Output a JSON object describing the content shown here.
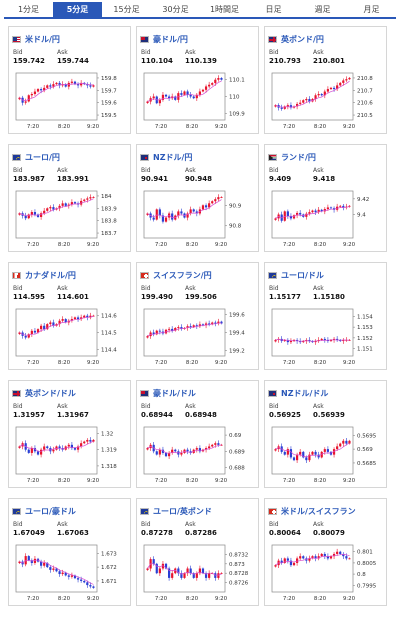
{
  "tabs": [
    "1分足",
    "5分足",
    "15分足",
    "30分足",
    "1時間足",
    "日足",
    "週足",
    "月足"
  ],
  "active_tab": 1,
  "labels": {
    "bid": "Bid",
    "ask": "Ask"
  },
  "x_ticks": [
    "7:20",
    "8:20",
    "9:20"
  ],
  "colors": {
    "accent": "#2a58b8",
    "up": "#e8142d",
    "down": "#2a3fd4",
    "ma": "#d64ad0"
  },
  "panels": [
    {
      "name": "米ドル/円",
      "flag": "us",
      "bid": "159.742",
      "ask": "159.744",
      "y_ticks": [
        "159.8",
        "159.7",
        "159.6",
        "159.5"
      ],
      "ylim": [
        159.46,
        159.84
      ],
      "chart_data": {
        "type": "candlestick",
        "close": [
          159.64,
          159.6,
          159.61,
          159.66,
          159.67,
          159.69,
          159.71,
          159.7,
          159.72,
          159.74,
          159.73,
          159.75,
          159.76,
          159.74,
          159.75,
          159.73,
          159.76,
          159.77,
          159.75,
          159.74,
          159.76,
          159.75,
          159.74,
          159.73,
          159.74
        ]
      }
    },
    {
      "name": "豪ドル/円",
      "flag": "au",
      "bid": "110.104",
      "ask": "110.139",
      "y_ticks": [
        "110.1",
        "110",
        "109.9"
      ],
      "ylim": [
        109.86,
        110.14
      ],
      "chart_data": {
        "type": "candlestick",
        "close": [
          109.97,
          109.99,
          110.0,
          109.96,
          109.98,
          110.01,
          110.0,
          109.99,
          110.0,
          109.98,
          110.02,
          110.01,
          110.03,
          110.01,
          110.0,
          109.99,
          110.01,
          110.03,
          110.04,
          110.06,
          110.07,
          110.08,
          110.1,
          110.11,
          110.1
        ]
      }
    },
    {
      "name": "英ポンド/円",
      "flag": "gb",
      "bid": "210.793",
      "ask": "210.801",
      "y_ticks": [
        "210.8",
        "210.7",
        "210.6",
        "210.5"
      ],
      "ylim": [
        210.46,
        210.84
      ],
      "chart_data": {
        "type": "candlestick",
        "close": [
          210.58,
          210.56,
          210.55,
          210.57,
          210.58,
          210.56,
          210.57,
          210.59,
          210.6,
          210.62,
          210.63,
          210.61,
          210.63,
          210.66,
          210.67,
          210.66,
          210.69,
          210.71,
          210.72,
          210.71,
          210.74,
          210.76,
          210.78,
          210.79,
          210.8
        ]
      }
    },
    {
      "name": "ユーロ/円",
      "flag": "eu",
      "bid": "183.987",
      "ask": "183.991",
      "y_ticks": [
        "184",
        "183.9",
        "183.8",
        "183.7"
      ],
      "ylim": [
        183.66,
        184.04
      ],
      "chart_data": {
        "type": "candlestick",
        "close": [
          183.86,
          183.84,
          183.82,
          183.85,
          183.87,
          183.85,
          183.83,
          183.86,
          183.88,
          183.9,
          183.91,
          183.89,
          183.9,
          183.92,
          183.94,
          183.92,
          183.93,
          183.95,
          183.94,
          183.93,
          183.96,
          183.97,
          183.98,
          183.99,
          183.99
        ]
      }
    },
    {
      "name": "NZドル/円",
      "flag": "nz",
      "bid": "90.941",
      "ask": "90.948",
      "y_ticks": [
        "90.9",
        "90.8"
      ],
      "ylim": [
        90.74,
        90.97
      ],
      "chart_data": {
        "type": "candlestick",
        "close": [
          90.86,
          90.84,
          90.83,
          90.88,
          90.85,
          90.82,
          90.84,
          90.86,
          90.83,
          90.85,
          90.87,
          90.86,
          90.84,
          90.86,
          90.88,
          90.87,
          90.86,
          90.88,
          90.9,
          90.89,
          90.91,
          90.92,
          90.93,
          90.94,
          90.94
        ]
      }
    },
    {
      "name": "ランド/円",
      "flag": "za",
      "bid": "9.409",
      "ask": "9.418",
      "y_ticks": [
        "9.42",
        "9.4"
      ],
      "ylim": [
        9.37,
        9.43
      ],
      "chart_data": {
        "type": "candlestick",
        "close": [
          9.395,
          9.4,
          9.392,
          9.404,
          9.398,
          9.395,
          9.399,
          9.402,
          9.4,
          9.397,
          9.401,
          9.403,
          9.405,
          9.403,
          9.406,
          9.404,
          9.407,
          9.409,
          9.408,
          9.406,
          9.41,
          9.411,
          9.409,
          9.41,
          9.411
        ]
      }
    },
    {
      "name": "カナダドル/円",
      "flag": "ca",
      "bid": "114.595",
      "ask": "114.601",
      "y_ticks": [
        "114.6",
        "114.5",
        "114.4"
      ],
      "ylim": [
        114.36,
        114.64
      ],
      "chart_data": {
        "type": "candlestick",
        "close": [
          114.5,
          114.48,
          114.47,
          114.49,
          114.51,
          114.5,
          114.52,
          114.54,
          114.52,
          114.55,
          114.56,
          114.54,
          114.55,
          114.57,
          114.58,
          114.56,
          114.57,
          114.58,
          114.59,
          114.58,
          114.59,
          114.6,
          114.59,
          114.6,
          114.6
        ]
      }
    },
    {
      "name": "スイスフラン/円",
      "flag": "ch",
      "bid": "199.490",
      "ask": "199.506",
      "y_ticks": [
        "199.6",
        "199.4",
        "199.2"
      ],
      "ylim": [
        199.14,
        199.66
      ],
      "chart_data": {
        "type": "candlestick",
        "close": [
          199.36,
          199.4,
          199.38,
          199.42,
          199.41,
          199.39,
          199.43,
          199.44,
          199.42,
          199.45,
          199.46,
          199.44,
          199.45,
          199.47,
          199.46,
          199.48,
          199.47,
          199.49,
          199.48,
          199.5,
          199.49,
          199.51,
          199.5,
          199.52,
          199.5
        ]
      }
    },
    {
      "name": "ユーロ/ドル",
      "flag": "eu",
      "bid": "1.15177",
      "ask": "1.15180",
      "y_ticks": [
        "1.154",
        "1.153",
        "1.152",
        "1.151"
      ],
      "ylim": [
        1.1503,
        1.1547
      ],
      "chart_data": {
        "type": "candlestick",
        "close": [
          1.1518,
          1.1519,
          1.1517,
          1.1518,
          1.1516,
          1.1517,
          1.1518,
          1.1517,
          1.1516,
          1.1517,
          1.1518,
          1.1517,
          1.1516,
          1.1517,
          1.1518,
          1.1519,
          1.1518,
          1.1517,
          1.1518,
          1.1519,
          1.1518,
          1.1517,
          1.1518,
          1.1518,
          1.1518
        ]
      }
    },
    {
      "name": "英ポンド/ドル",
      "flag": "gb",
      "bid": "1.31957",
      "ask": "1.31967",
      "y_ticks": [
        "1.32",
        "1.319",
        "1.318"
      ],
      "ylim": [
        1.3175,
        1.3204
      ],
      "chart_data": {
        "type": "candlestick",
        "close": [
          1.3192,
          1.3194,
          1.319,
          1.3188,
          1.3191,
          1.3189,
          1.3187,
          1.319,
          1.3192,
          1.3191,
          1.3189,
          1.319,
          1.3192,
          1.3191,
          1.319,
          1.3192,
          1.3193,
          1.3191,
          1.319,
          1.3192,
          1.3194,
          1.3195,
          1.3196,
          1.3195,
          1.3196
        ]
      }
    },
    {
      "name": "豪ドル/ドル",
      "flag": "au",
      "bid": "0.68944",
      "ask": "0.68948",
      "y_ticks": [
        "0.69",
        "0.689",
        "0.688"
      ],
      "ylim": [
        0.6876,
        0.6905
      ],
      "chart_data": {
        "type": "candlestick",
        "close": [
          0.6892,
          0.6894,
          0.689,
          0.6888,
          0.6891,
          0.6889,
          0.6887,
          0.6889,
          0.6891,
          0.689,
          0.6888,
          0.6889,
          0.6891,
          0.689,
          0.6889,
          0.6891,
          0.6892,
          0.689,
          0.6891,
          0.6892,
          0.6893,
          0.6894,
          0.6895,
          0.6894,
          0.6894
        ]
      }
    },
    {
      "name": "NZドル/ドル",
      "flag": "nz",
      "bid": "0.56925",
      "ask": "0.56939",
      "y_ticks": [
        "0.5695",
        "0.569",
        "0.5685"
      ],
      "ylim": [
        0.5681,
        0.5698
      ],
      "chart_data": {
        "type": "candlestick",
        "close": [
          0.569,
          0.5691,
          0.5689,
          0.5688,
          0.569,
          0.5687,
          0.5686,
          0.5688,
          0.5689,
          0.5687,
          0.5686,
          0.5688,
          0.5689,
          0.5688,
          0.5687,
          0.5689,
          0.569,
          0.5689,
          0.5688,
          0.569,
          0.5691,
          0.5692,
          0.5693,
          0.5692,
          0.5693
        ]
      }
    },
    {
      "name": "ユーロ/豪ドル",
      "flag": "eu",
      "bid": "1.67049",
      "ask": "1.67063",
      "y_ticks": [
        "1.673",
        "1.672",
        "1.671"
      ],
      "ylim": [
        1.6702,
        1.6736
      ],
      "chart_data": {
        "type": "candlestick",
        "close": [
          1.6724,
          1.6722,
          1.6728,
          1.6725,
          1.6723,
          1.6726,
          1.6724,
          1.6721,
          1.6723,
          1.672,
          1.6718,
          1.6719,
          1.6717,
          1.6715,
          1.6716,
          1.6714,
          1.6713,
          1.6714,
          1.6712,
          1.6711,
          1.671,
          1.6709,
          1.6707,
          1.6706,
          1.6705
        ]
      }
    },
    {
      "name": "ユーロ/英ポンド",
      "flag": "eu",
      "bid": "0.87278",
      "ask": "0.87286",
      "y_ticks": [
        "0.8732",
        "0.873",
        "0.8728",
        "0.8726"
      ],
      "ylim": [
        0.8724,
        0.8734
      ],
      "chart_data": {
        "type": "candlestick",
        "close": [
          0.8729,
          0.8731,
          0.873,
          0.8728,
          0.8729,
          0.873,
          0.8729,
          0.8727,
          0.8728,
          0.8729,
          0.8728,
          0.8727,
          0.8728,
          0.8729,
          0.8728,
          0.8727,
          0.8728,
          0.8729,
          0.8728,
          0.8727,
          0.8728,
          0.8728,
          0.8727,
          0.8728,
          0.8728
        ]
      }
    },
    {
      "name": "米ドル/スイスフラン",
      "flag": "ch",
      "bid": "0.80064",
      "ask": "0.80079",
      "y_ticks": [
        "0.801",
        "0.8005",
        "0.8",
        "0.7995"
      ],
      "ylim": [
        0.7992,
        0.8013
      ],
      "chart_data": {
        "type": "candlestick",
        "close": [
          0.8004,
          0.8006,
          0.8005,
          0.8007,
          0.8006,
          0.8004,
          0.8005,
          0.8007,
          0.8008,
          0.8007,
          0.8006,
          0.8007,
          0.8008,
          0.8007,
          0.8008,
          0.8009,
          0.8008,
          0.8007,
          0.8008,
          0.8009,
          0.801,
          0.8009,
          0.8008,
          0.8007,
          0.8007
        ]
      }
    }
  ]
}
